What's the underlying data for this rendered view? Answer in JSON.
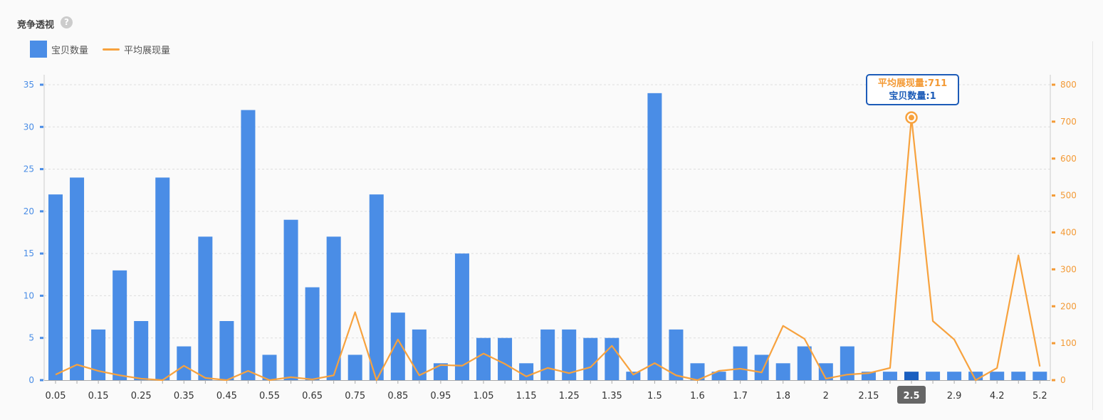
{
  "header": {
    "title": "竞争透视",
    "help_icon": "question-circle-icon"
  },
  "legend": [
    {
      "label": "宝贝数量",
      "color": "#4a8de6"
    },
    {
      "label": "平均展现量",
      "color": "#f7a23e"
    }
  ],
  "tooltip": {
    "line1": "平均展现量:711",
    "line2": "宝贝数量:1"
  },
  "chart_data": {
    "type": "bar+line",
    "categories": [
      "0.05",
      null,
      "0.15",
      null,
      "0.25",
      null,
      "0.35",
      null,
      "0.45",
      null,
      "0.55",
      null,
      "0.65",
      null,
      "0.75",
      null,
      "0.85",
      null,
      "0.95",
      null,
      "1.05",
      null,
      "1.15",
      null,
      "1.25",
      null,
      "1.35",
      null,
      "1.5",
      null,
      "1.6",
      null,
      "1.7",
      null,
      "1.8",
      null,
      "2",
      null,
      "2.15",
      null,
      "2.5",
      null,
      "2.9",
      null,
      "4.2",
      null,
      "5.2"
    ],
    "series": [
      {
        "name": "宝贝数量",
        "type": "bar",
        "axis": "left",
        "color": "#4a8de6",
        "values": [
          22,
          24,
          6,
          13,
          7,
          24,
          4,
          17,
          7,
          32,
          3,
          19,
          11,
          17,
          3,
          22,
          8,
          6,
          2,
          15,
          5,
          5,
          2,
          6,
          6,
          5,
          5,
          1,
          34,
          6,
          2,
          1,
          4,
          3,
          2,
          4,
          2,
          4,
          1,
          1,
          1,
          1,
          1,
          1,
          1,
          1,
          1
        ]
      },
      {
        "name": "平均展现量",
        "type": "line",
        "axis": "right",
        "color": "#f7a23e",
        "values": [
          15,
          42,
          25,
          13,
          4,
          0,
          39,
          6,
          0,
          25,
          0,
          8,
          2,
          13,
          184,
          0,
          110,
          13,
          41,
          39,
          72,
          44,
          10,
          33,
          19,
          35,
          93,
          15,
          46,
          13,
          0,
          25,
          31,
          21,
          147,
          112,
          4,
          15,
          19,
          33,
          711,
          160,
          110,
          0,
          33,
          338,
          37
        ]
      }
    ],
    "highlight_index": 40,
    "highlight_color": "#1a5fc0",
    "y_left": {
      "range": [
        0,
        35
      ],
      "ticks": [
        0,
        5,
        10,
        15,
        20,
        25,
        30,
        35
      ],
      "color": "#4a8de6"
    },
    "y_right": {
      "range": [
        0,
        800
      ],
      "ticks": [
        0,
        100,
        200,
        300,
        400,
        500,
        600,
        700,
        800
      ],
      "color": "#f39a36"
    },
    "grid": true,
    "legend_position": "top-left"
  }
}
